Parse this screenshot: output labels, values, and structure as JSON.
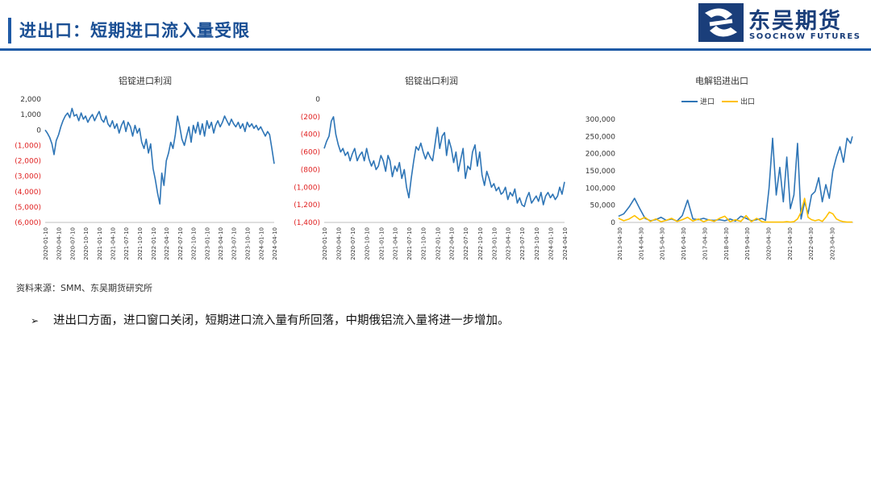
{
  "header": {
    "title": "进出口：短期进口流入量受限",
    "logo_cn": "东吴期货",
    "logo_en": "SOOCHOW FUTURES",
    "brand_color": "#1f5aa6"
  },
  "source": "资料来源：SMM、东吴期货研究所",
  "bullet": {
    "mark": "➢",
    "text": "进出口方面，进口窗口关闭，短期进口流入量有所回落，中期俄铝流入量将进一步增加。"
  },
  "chart_data": [
    {
      "type": "line",
      "title": "铝锭进口利润",
      "ylim": [
        -6000,
        2000
      ],
      "yticks": [
        2000,
        1000,
        0,
        -1000,
        -2000,
        -3000,
        -4000,
        -5000,
        -6000
      ],
      "ytick_labels": [
        "2,000",
        "1,000",
        "0",
        "(1,000)",
        "(2,000)",
        "(3,000)",
        "(4,000)",
        "(5,000)",
        "(6,000)"
      ],
      "x_start": "2020-01-10",
      "x_end": "2024-04-10",
      "xtick_labels": [
        "2020-01-10",
        "2020-04-10",
        "2020-07-10",
        "2020-10-10",
        "2021-01-10",
        "2021-04-10",
        "2021-07-10",
        "2021-10-10",
        "2022-01-10",
        "2022-04-10",
        "2022-07-10",
        "2022-10-10",
        "2023-01-10",
        "2023-04-10",
        "2023-07-10",
        "2023-10-10",
        "2024-01-10",
        "2024-04-10"
      ],
      "series": [
        {
          "name": "",
          "color": "#2e75b6",
          "x": [
            "2020-01-10",
            "2020-01-25",
            "2020-02-10",
            "2020-02-25",
            "2020-03-10",
            "2020-03-25",
            "2020-04-10",
            "2020-04-25",
            "2020-05-10",
            "2020-05-25",
            "2020-06-10",
            "2020-06-25",
            "2020-07-10",
            "2020-07-25",
            "2020-08-10",
            "2020-08-25",
            "2020-09-10",
            "2020-09-25",
            "2020-10-10",
            "2020-10-25",
            "2020-11-10",
            "2020-11-25",
            "2020-12-10",
            "2020-12-25",
            "2021-01-10",
            "2021-01-25",
            "2021-02-10",
            "2021-02-25",
            "2021-03-10",
            "2021-03-25",
            "2021-04-10",
            "2021-04-25",
            "2021-05-10",
            "2021-05-25",
            "2021-06-10",
            "2021-06-25",
            "2021-07-10",
            "2021-07-25",
            "2021-08-10",
            "2021-08-25",
            "2021-09-10",
            "2021-09-25",
            "2021-10-10",
            "2021-10-25",
            "2021-11-10",
            "2021-11-25",
            "2021-12-10",
            "2021-12-25",
            "2022-01-10",
            "2022-01-25",
            "2022-02-10",
            "2022-02-25",
            "2022-03-10",
            "2022-03-25",
            "2022-04-10",
            "2022-04-25",
            "2022-05-10",
            "2022-05-25",
            "2022-06-10",
            "2022-06-25",
            "2022-07-10",
            "2022-07-25",
            "2022-08-10",
            "2022-08-25",
            "2022-09-10",
            "2022-09-25",
            "2022-10-10",
            "2022-10-25",
            "2022-11-10",
            "2022-11-25",
            "2022-12-10",
            "2022-12-25",
            "2023-01-10",
            "2023-01-25",
            "2023-02-10",
            "2023-02-25",
            "2023-03-10",
            "2023-03-25",
            "2023-04-10",
            "2023-04-25",
            "2023-05-10",
            "2023-05-25",
            "2023-06-10",
            "2023-06-25",
            "2023-07-10",
            "2023-07-25",
            "2023-08-10",
            "2023-08-25",
            "2023-09-10",
            "2023-09-25",
            "2023-10-10",
            "2023-10-25",
            "2023-11-10",
            "2023-11-25",
            "2023-12-10",
            "2023-12-25",
            "2024-01-10",
            "2024-01-25",
            "2024-02-10",
            "2024-02-25",
            "2024-03-10",
            "2024-03-25",
            "2024-04-10"
          ],
          "values": [
            0,
            -200,
            -500,
            -900,
            -1600,
            -700,
            -300,
            200,
            600,
            900,
            1100,
            800,
            1400,
            900,
            1000,
            600,
            1100,
            700,
            900,
            500,
            800,
            1000,
            600,
            900,
            1200,
            700,
            500,
            900,
            400,
            200,
            600,
            100,
            400,
            -200,
            300,
            600,
            -100,
            500,
            200,
            -400,
            300,
            -200,
            100,
            -800,
            -1200,
            -600,
            -1500,
            -900,
            -2500,
            -3200,
            -4100,
            -4800,
            -2800,
            -3600,
            -2000,
            -1500,
            -800,
            -1200,
            -300,
            900,
            200,
            -600,
            -1000,
            -400,
            200,
            -800,
            300,
            -200,
            500,
            -300,
            400,
            -400,
            600,
            100,
            500,
            -200,
            300,
            600,
            200,
            500,
            900,
            600,
            300,
            700,
            400,
            200,
            500,
            100,
            400,
            -100,
            500,
            200,
            400,
            100,
            300,
            0,
            200,
            -100,
            -400,
            -100,
            -300,
            -1200,
            -2200
          ]
        }
      ]
    },
    {
      "type": "line",
      "title": "铝锭出口利润",
      "ylim": [
        -1400,
        0
      ],
      "yticks": [
        0,
        -200,
        -400,
        -600,
        -800,
        -1000,
        -1200,
        -1400
      ],
      "ytick_labels": [
        "0",
        "(200)",
        "(400)",
        "(600)",
        "(800)",
        "(1,000)",
        "(1,200)",
        "(1,400)"
      ],
      "x_start": "2020-01-10",
      "x_end": "2024-04-10",
      "xtick_labels": [
        "2020-01-10",
        "2020-04-10",
        "2020-07-10",
        "2020-10-10",
        "2021-01-10",
        "2021-04-10",
        "2021-07-10",
        "2021-10-10",
        "2022-01-10",
        "2022-04-10",
        "2022-07-10",
        "2022-10-10",
        "2023-01-10",
        "2023-04-10",
        "2023-07-10",
        "2023-10-10",
        "2024-01-10",
        "2024-04-10"
      ],
      "series": [
        {
          "name": "",
          "color": "#2e75b6",
          "x": [
            "2020-01-10",
            "2020-01-25",
            "2020-02-10",
            "2020-02-25",
            "2020-03-10",
            "2020-03-25",
            "2020-04-10",
            "2020-04-25",
            "2020-05-10",
            "2020-05-25",
            "2020-06-10",
            "2020-06-25",
            "2020-07-10",
            "2020-07-25",
            "2020-08-10",
            "2020-08-25",
            "2020-09-10",
            "2020-09-25",
            "2020-10-10",
            "2020-10-25",
            "2020-11-10",
            "2020-11-25",
            "2020-12-10",
            "2020-12-25",
            "2021-01-10",
            "2021-01-25",
            "2021-02-10",
            "2021-02-25",
            "2021-03-10",
            "2021-03-25",
            "2021-04-10",
            "2021-04-25",
            "2021-05-10",
            "2021-05-25",
            "2021-06-10",
            "2021-06-25",
            "2021-07-10",
            "2021-07-25",
            "2021-08-10",
            "2021-08-25",
            "2021-09-10",
            "2021-09-25",
            "2021-10-10",
            "2021-10-25",
            "2021-11-10",
            "2021-11-25",
            "2021-12-10",
            "2021-12-25",
            "2022-01-10",
            "2022-01-25",
            "2022-02-10",
            "2022-02-25",
            "2022-03-10",
            "2022-03-25",
            "2022-04-10",
            "2022-04-25",
            "2022-05-10",
            "2022-05-25",
            "2022-06-10",
            "2022-06-25",
            "2022-07-10",
            "2022-07-25",
            "2022-08-10",
            "2022-08-25",
            "2022-09-10",
            "2022-09-25",
            "2022-10-10",
            "2022-10-25",
            "2022-11-10",
            "2022-11-25",
            "2022-12-10",
            "2022-12-25",
            "2023-01-10",
            "2023-01-25",
            "2023-02-10",
            "2023-02-25",
            "2023-03-10",
            "2023-03-25",
            "2023-04-10",
            "2023-04-25",
            "2023-05-10",
            "2023-05-25",
            "2023-06-10",
            "2023-06-25",
            "2023-07-10",
            "2023-07-25",
            "2023-08-10",
            "2023-08-25",
            "2023-09-10",
            "2023-09-25",
            "2023-10-10",
            "2023-10-25",
            "2023-11-10",
            "2023-11-25",
            "2023-12-10",
            "2023-12-25",
            "2024-01-10",
            "2024-01-25",
            "2024-02-10",
            "2024-02-25",
            "2024-03-10",
            "2024-03-25",
            "2024-04-10"
          ],
          "values": [
            -560,
            -480,
            -420,
            -250,
            -200,
            -400,
            -520,
            -600,
            -560,
            -640,
            -600,
            -700,
            -620,
            -560,
            -700,
            -640,
            -600,
            -700,
            -560,
            -680,
            -760,
            -700,
            -800,
            -760,
            -640,
            -700,
            -820,
            -640,
            -700,
            -880,
            -760,
            -820,
            -720,
            -900,
            -800,
            -1000,
            -1120,
            -900,
            -700,
            -540,
            -580,
            -500,
            -600,
            -680,
            -600,
            -660,
            -700,
            -520,
            -320,
            -560,
            -420,
            -380,
            -640,
            -460,
            -560,
            -720,
            -600,
            -820,
            -680,
            -560,
            -900,
            -760,
            -800,
            -600,
            -520,
            -760,
            -600,
            -860,
            -980,
            -820,
            -900,
            -1000,
            -960,
            -1040,
            -1000,
            -1080,
            -1060,
            -1000,
            -1140,
            -1060,
            -1100,
            -1020,
            -1180,
            -1120,
            -1200,
            -1220,
            -1120,
            -1060,
            -1180,
            -1140,
            -1100,
            -1160,
            -1060,
            -1200,
            -1100,
            -1060,
            -1120,
            -1080,
            -1140,
            -1100,
            -1000,
            -1080,
            -940
          ]
        }
      ]
    },
    {
      "type": "line",
      "title": "电解铝进出口",
      "legend_placement": "top-center",
      "ylim": [
        0,
        300000
      ],
      "yticks": [
        0,
        50000,
        100000,
        150000,
        200000,
        250000,
        300000
      ],
      "ytick_labels": [
        "0",
        "50,000",
        "100,000",
        "150,000",
        "200,000",
        "250,000",
        "300,000"
      ],
      "x_start": "2013-04-30",
      "x_end": "2024-04-30",
      "xtick_labels": [
        "2013-04-30",
        "2014-04-30",
        "2015-04-30",
        "2016-04-30",
        "2017-04-30",
        "2018-04-30",
        "2019-04-30",
        "2020-04-30",
        "2021-04-30",
        "2022-04-30",
        "2023-04-30"
      ],
      "series": [
        {
          "name": "进口",
          "color": "#2e75b6",
          "x": [
            "2013-04",
            "2013-07",
            "2013-10",
            "2014-01",
            "2014-04",
            "2014-07",
            "2014-10",
            "2015-01",
            "2015-04",
            "2015-07",
            "2015-10",
            "2016-01",
            "2016-04",
            "2016-07",
            "2016-10",
            "2017-01",
            "2017-04",
            "2017-07",
            "2017-10",
            "2018-01",
            "2018-04",
            "2018-07",
            "2018-10",
            "2019-01",
            "2019-04",
            "2019-07",
            "2019-10",
            "2020-01",
            "2020-03",
            "2020-05",
            "2020-07",
            "2020-09",
            "2020-11",
            "2021-01",
            "2021-03",
            "2021-05",
            "2021-07",
            "2021-09",
            "2021-11",
            "2022-01",
            "2022-03",
            "2022-05",
            "2022-07",
            "2022-09",
            "2022-11",
            "2023-01",
            "2023-03",
            "2023-05",
            "2023-07",
            "2023-09",
            "2023-11",
            "2024-01",
            "2024-03",
            "2024-04"
          ],
          "values": [
            18000,
            25000,
            45000,
            70000,
            40000,
            12000,
            5000,
            8000,
            15000,
            6000,
            10000,
            4000,
            20000,
            65000,
            10000,
            8000,
            12000,
            7000,
            6000,
            8000,
            5000,
            10000,
            4000,
            18000,
            12000,
            5000,
            8000,
            12000,
            6000,
            100000,
            245000,
            80000,
            160000,
            60000,
            190000,
            40000,
            80000,
            230000,
            10000,
            60000,
            25000,
            80000,
            90000,
            130000,
            60000,
            110000,
            70000,
            150000,
            190000,
            220000,
            175000,
            245000,
            230000,
            250000
          ]
        },
        {
          "name": "出口",
          "color": "#ffc000",
          "x": [
            "2013-04",
            "2013-07",
            "2013-10",
            "2014-01",
            "2014-04",
            "2014-07",
            "2014-10",
            "2015-01",
            "2015-04",
            "2015-07",
            "2015-10",
            "2016-01",
            "2016-04",
            "2016-07",
            "2016-10",
            "2017-01",
            "2017-04",
            "2017-07",
            "2017-10",
            "2018-01",
            "2018-04",
            "2018-07",
            "2018-10",
            "2019-01",
            "2019-04",
            "2019-07",
            "2019-10",
            "2020-01",
            "2020-03",
            "2020-05",
            "2020-07",
            "2020-09",
            "2020-11",
            "2021-01",
            "2021-03",
            "2021-05",
            "2021-07",
            "2021-09",
            "2021-11",
            "2022-01",
            "2022-03",
            "2022-05",
            "2022-07",
            "2022-09",
            "2022-11",
            "2023-01",
            "2023-03",
            "2023-05",
            "2023-07",
            "2023-09",
            "2023-11",
            "2024-01",
            "2024-03",
            "2024-04"
          ],
          "values": [
            12000,
            5000,
            10000,
            20000,
            8000,
            15000,
            3000,
            10000,
            2000,
            6000,
            12000,
            3000,
            8000,
            15000,
            4000,
            10000,
            2000,
            8000,
            3000,
            12000,
            18000,
            2000,
            8000,
            3000,
            20000,
            2000,
            12000,
            2000,
            1000,
            1000,
            1000,
            1000,
            1000,
            1000,
            2000,
            1000,
            2000,
            10000,
            30000,
            70000,
            15000,
            8000,
            5000,
            8000,
            3000,
            15000,
            30000,
            25000,
            10000,
            5000,
            2000,
            1000,
            1000,
            1000
          ]
        }
      ]
    }
  ]
}
